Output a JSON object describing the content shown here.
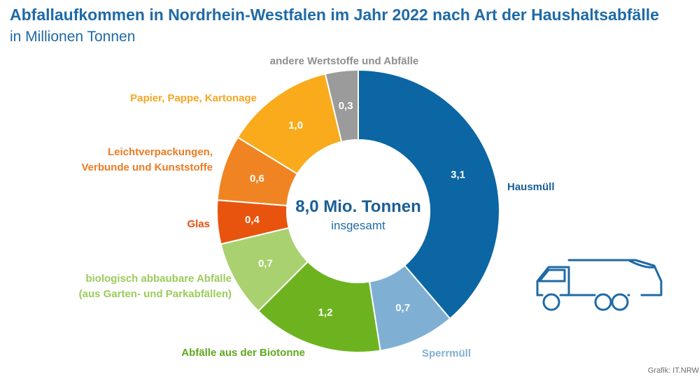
{
  "header": {
    "title": "Abfallaufkommen in Nordrhein-Westfalen im Jahr 2022 nach Art der Haushaltsabfälle",
    "subtitle": "in Millionen Tonnen"
  },
  "center": {
    "total": "8,0 Mio. Tonnen",
    "sub": "insgesamt"
  },
  "credit": "Grafik: IT.NRW",
  "icon": "garbage-truck-icon",
  "chart_data": {
    "type": "pie",
    "title": "Abfallaufkommen in Nordrhein-Westfalen im Jahr 2022 nach Art der Haushaltsabfälle",
    "subtitle": "in Millionen Tonnen",
    "unit": "Millionen Tonnen",
    "total_label": "8,0 Mio. Tonnen",
    "slices": [
      {
        "label": "Hausmüll",
        "value": 3.1,
        "value_label": "3,1",
        "color": "#0b66a3"
      },
      {
        "label": "Sperrmüll",
        "value": 0.7,
        "value_label": "0,7",
        "color": "#7fb0d4"
      },
      {
        "label": "Abfälle aus der Biotonne",
        "value": 1.2,
        "value_label": "1,2",
        "color": "#6db31f"
      },
      {
        "label": "biologisch abbaubare Abfälle (aus Garten- und Parkabfällen)",
        "value": 0.7,
        "value_label": "0,7",
        "color": "#a9d16f"
      },
      {
        "label": "Glas",
        "value": 0.4,
        "value_label": "0,4",
        "color": "#e8540e"
      },
      {
        "label": "Leichtverpackungen, Verbunde und Kunststoffe",
        "value": 0.6,
        "value_label": "0,6",
        "color": "#f08422"
      },
      {
        "label": "Papier, Pappe, Kartonage",
        "value": 1.0,
        "value_label": "1,0",
        "color": "#f9ab1c"
      },
      {
        "label": "andere Wertstoffe und Abfälle",
        "value": 0.3,
        "value_label": "0,3",
        "color": "#9b9b9b"
      }
    ],
    "label_colors": [
      "#1b5f96",
      "#7fb0d4",
      "#5ea81c",
      "#9ccb5c",
      "#e54f10",
      "#ee7b24",
      "#f5a623",
      "#8e8e8e"
    ]
  }
}
